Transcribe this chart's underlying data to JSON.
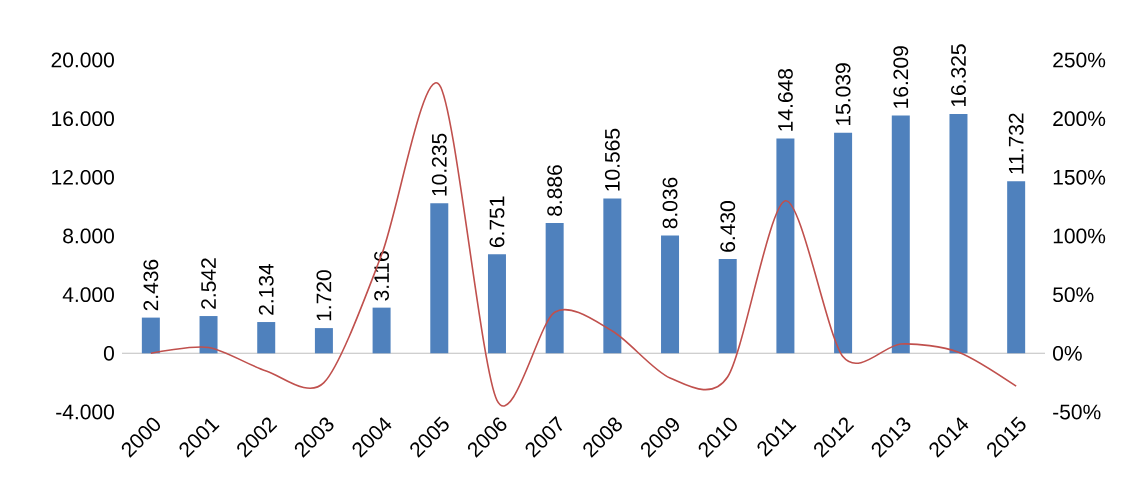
{
  "chart_data": {
    "type": "bar",
    "categories": [
      "2000",
      "2001",
      "2002",
      "2003",
      "2004",
      "2005",
      "2006",
      "2007",
      "2008",
      "2009",
      "2010",
      "2011",
      "2012",
      "2013",
      "2014",
      "2015"
    ],
    "series": [
      {
        "color": "#4f81bd",
        "values": [
          2436,
          2542,
          2134,
          1720,
          3116,
          10235,
          6751,
          8886,
          10565,
          8036,
          6430,
          14648,
          15039,
          16209,
          16325,
          11732
        ],
        "value_labels": [
          "2.436",
          "2.542",
          "2.134",
          "1.720",
          "3.116",
          "10.235",
          "6.751",
          "8.886",
          "10.565",
          "8.036",
          "6.430",
          "14.648",
          "15.039",
          "16.209",
          "16.325",
          "11.732"
        ]
      },
      {
        "type": "line",
        "axis": "y2",
        "color": "#c0504d",
        "values": [
          0,
          5,
          -15,
          -25,
          84,
          229,
          -40,
          35,
          19,
          -21,
          -20,
          130,
          -3,
          8,
          1,
          -28
        ]
      }
    ],
    "ylim": [
      -4000,
      20000
    ],
    "yticks": [
      {
        "value": -4000,
        "label": "-4.000"
      },
      {
        "value": 0,
        "label": "0"
      },
      {
        "value": 4000,
        "label": "4.000"
      },
      {
        "value": 8000,
        "label": "8.000"
      },
      {
        "value": 12000,
        "label": "12.000"
      },
      {
        "value": 16000,
        "label": "16.000"
      },
      {
        "value": 20000,
        "label": "20.000"
      }
    ],
    "y2lim": [
      -50,
      250
    ],
    "y2ticks": [
      {
        "value": -50,
        "label": "-50%"
      },
      {
        "value": 0,
        "label": "0%"
      },
      {
        "value": 50,
        "label": "50%"
      },
      {
        "value": 100,
        "label": "100%"
      },
      {
        "value": 150,
        "label": "150%"
      },
      {
        "value": 200,
        "label": "200%"
      },
      {
        "value": 250,
        "label": "250%"
      }
    ]
  }
}
